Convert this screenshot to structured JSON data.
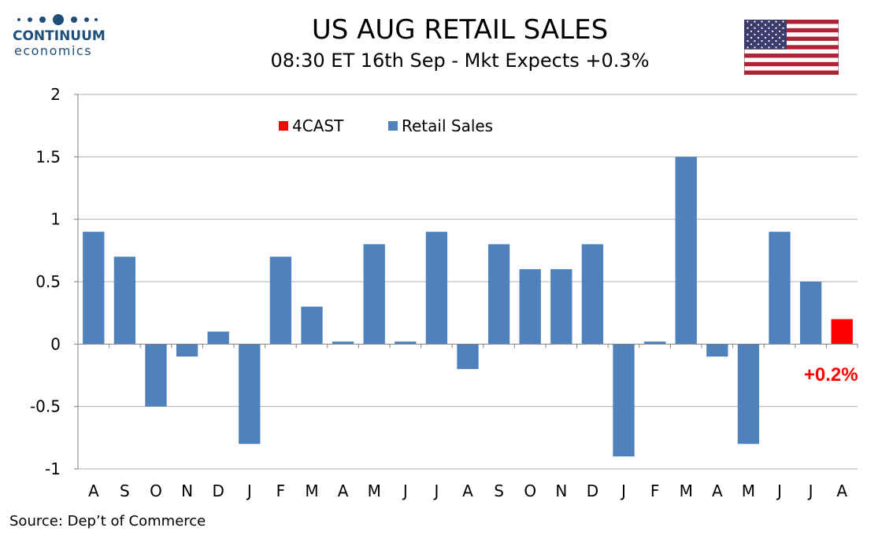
{
  "logo": {
    "name": "CONTINUUM",
    "sub": "economics"
  },
  "title": "US AUG RETAIL SALES",
  "subtitle": "08:30 ET 16th Sep - Mkt Expects +0.3%",
  "source": "Source: Dep’t of Commerce",
  "colors": {
    "series": "#4f81bd",
    "forecast": "#ff0000",
    "grid": "#b0b0b0",
    "logo": "#1f4e79"
  },
  "icons": {
    "flag": "us-flag-icon"
  },
  "chart_data": {
    "type": "bar",
    "categories": [
      "A",
      "S",
      "O",
      "N",
      "D",
      "J",
      "F",
      "M",
      "A",
      "M",
      "J",
      "J",
      "A",
      "S",
      "O",
      "N",
      "D",
      "J",
      "F",
      "M",
      "A",
      "M",
      "J",
      "J",
      "A"
    ],
    "series": [
      {
        "name": "Retail Sales",
        "color": "#4f81bd",
        "values": [
          0.9,
          0.7,
          -0.5,
          -0.1,
          0.1,
          -0.8,
          0.7,
          0.3,
          0.02,
          0.8,
          0.02,
          0.9,
          -0.2,
          0.8,
          0.6,
          0.6,
          0.8,
          -0.9,
          0.02,
          1.5,
          -0.1,
          -0.8,
          0.9,
          0.5,
          null
        ]
      },
      {
        "name": "4CAST",
        "color": "#ff0000",
        "values": [
          null,
          null,
          null,
          null,
          null,
          null,
          null,
          null,
          null,
          null,
          null,
          null,
          null,
          null,
          null,
          null,
          null,
          null,
          null,
          null,
          null,
          null,
          null,
          null,
          0.2
        ]
      }
    ],
    "yticks": [
      "2",
      "1.5",
      "1",
      "0.5",
      "0",
      "-0.5",
      "-1"
    ],
    "ylim": [
      -1,
      2
    ],
    "grid": true,
    "legend_position": "top-left",
    "annotation": "+0.2%"
  }
}
